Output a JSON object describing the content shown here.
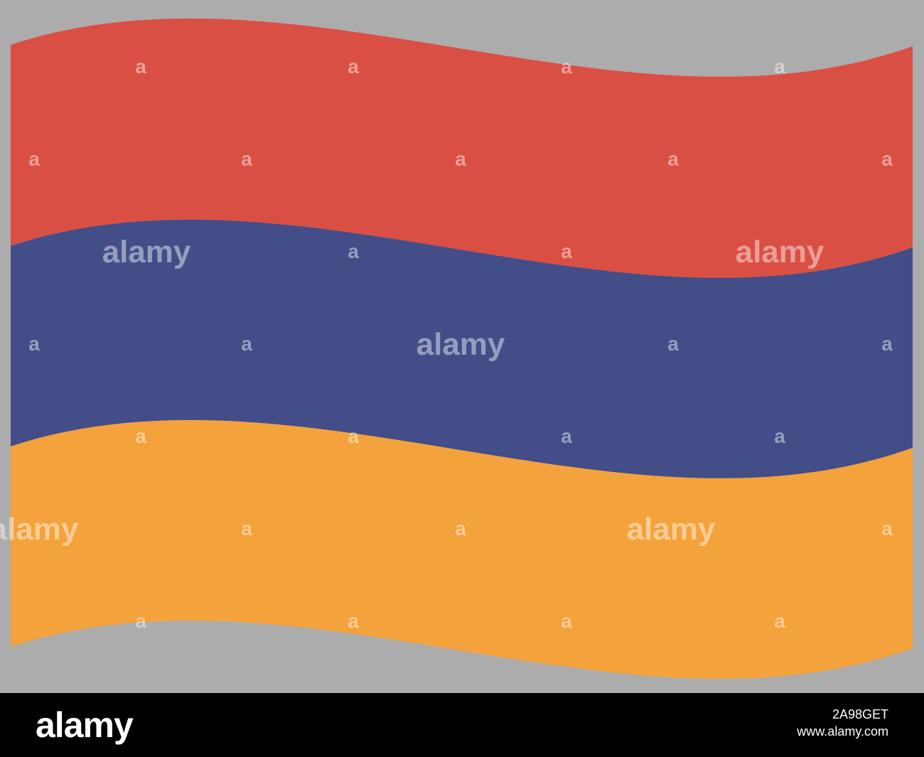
{
  "colors": {
    "background": "#acacac",
    "red_stripe": "#da4f44",
    "blue_stripe": "#434d88",
    "orange_stripe": "#f4a23c",
    "footer": "#000000"
  },
  "flag": {
    "stripes": [
      "red",
      "blue",
      "orange"
    ]
  },
  "watermark": {
    "word": "alamy",
    "glyph": "a"
  },
  "footer": {
    "logo": "alamy",
    "image_id": "2A98GET",
    "url": "www.alamy.com"
  }
}
